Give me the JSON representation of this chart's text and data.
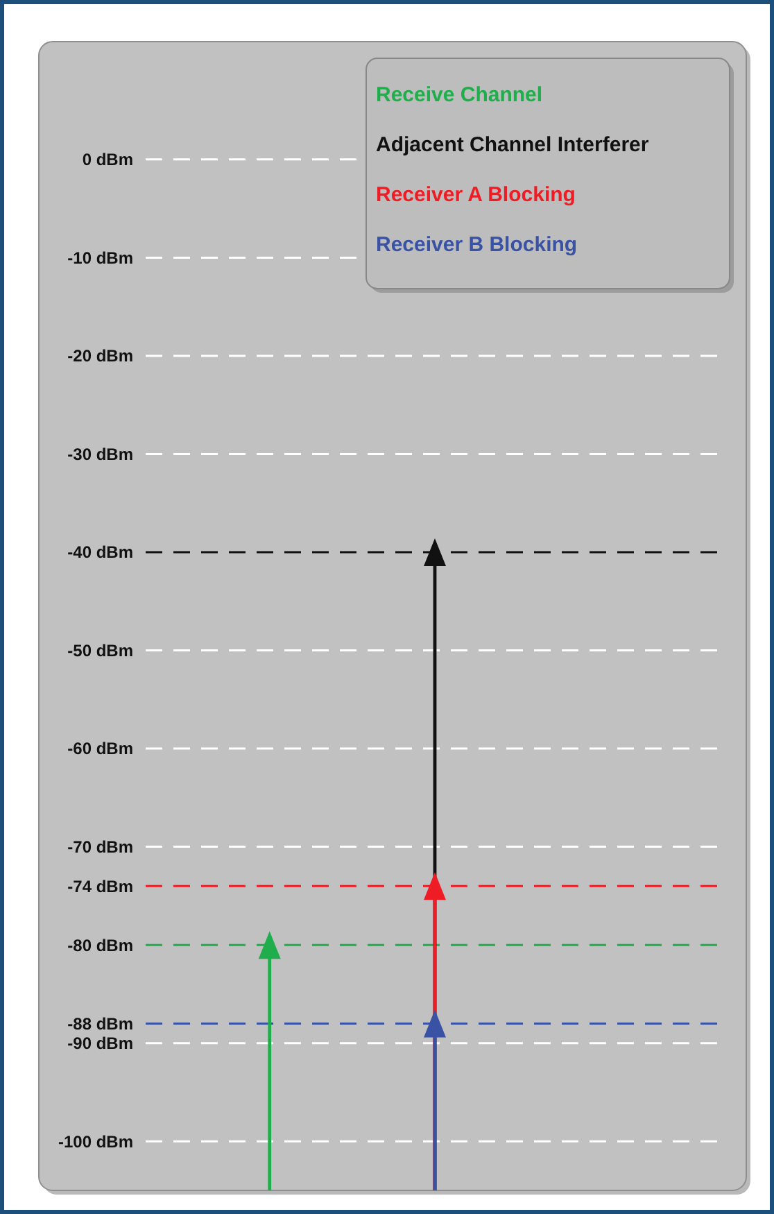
{
  "chart_data": {
    "type": "lollipop",
    "categories": [
      null,
      null,
      null,
      null,
      null,
      null,
      null
    ],
    "marker": "triangle",
    "series": [
      {
        "name": "Receive Channel",
        "color": "#1fae4b",
        "values": [
          null,
          -80,
          null,
          null,
          null,
          null,
          null
        ]
      },
      {
        "name": "Adjacent Channel Interferer",
        "color": "#111111",
        "values": [
          null,
          null,
          null,
          -40,
          null,
          null,
          null
        ]
      },
      {
        "name": "Receiver A Blocking",
        "color": "#ee1c24",
        "values": [
          null,
          null,
          null,
          -74,
          null,
          null,
          null
        ]
      },
      {
        "name": "Receiver B Blocking",
        "color": "#3a52a4",
        "values": [
          null,
          null,
          null,
          -88,
          null,
          null,
          null
        ]
      }
    ],
    "ylim": [
      -105,
      12
    ],
    "yticks": [
      {
        "value": 0,
        "label": "0 dBm"
      },
      {
        "value": -10,
        "label": "-10 dBm"
      },
      {
        "value": -20,
        "label": "-20 dBm"
      },
      {
        "value": -30,
        "label": "-30 dBm"
      },
      {
        "value": -40,
        "label": "-40 dBm"
      },
      {
        "value": -50,
        "label": "-50 dBm"
      },
      {
        "value": -60,
        "label": "-60 dBm"
      },
      {
        "value": -70,
        "label": "-70 dBm"
      },
      {
        "value": -74,
        "label": "-74 dBm"
      },
      {
        "value": -80,
        "label": "-80 dBm"
      },
      {
        "value": -88,
        "label": "-88 dBm"
      },
      {
        "value": -90,
        "label": "-90 dBm"
      },
      {
        "value": -100,
        "label": "-100 dBm"
      }
    ],
    "grid": "y",
    "ref_lines": [
      {
        "axis": "y",
        "value": -40,
        "color": "#111111",
        "line_style": "dashed"
      },
      {
        "axis": "y",
        "value": -74,
        "color": "#ee1c24",
        "line_style": "dashed"
      },
      {
        "axis": "y",
        "value": -80,
        "color": "#1fae4b",
        "line_style": "dashed"
      },
      {
        "axis": "y",
        "value": -88,
        "color": "#3a52a4",
        "line_style": "dashed"
      }
    ]
  }
}
